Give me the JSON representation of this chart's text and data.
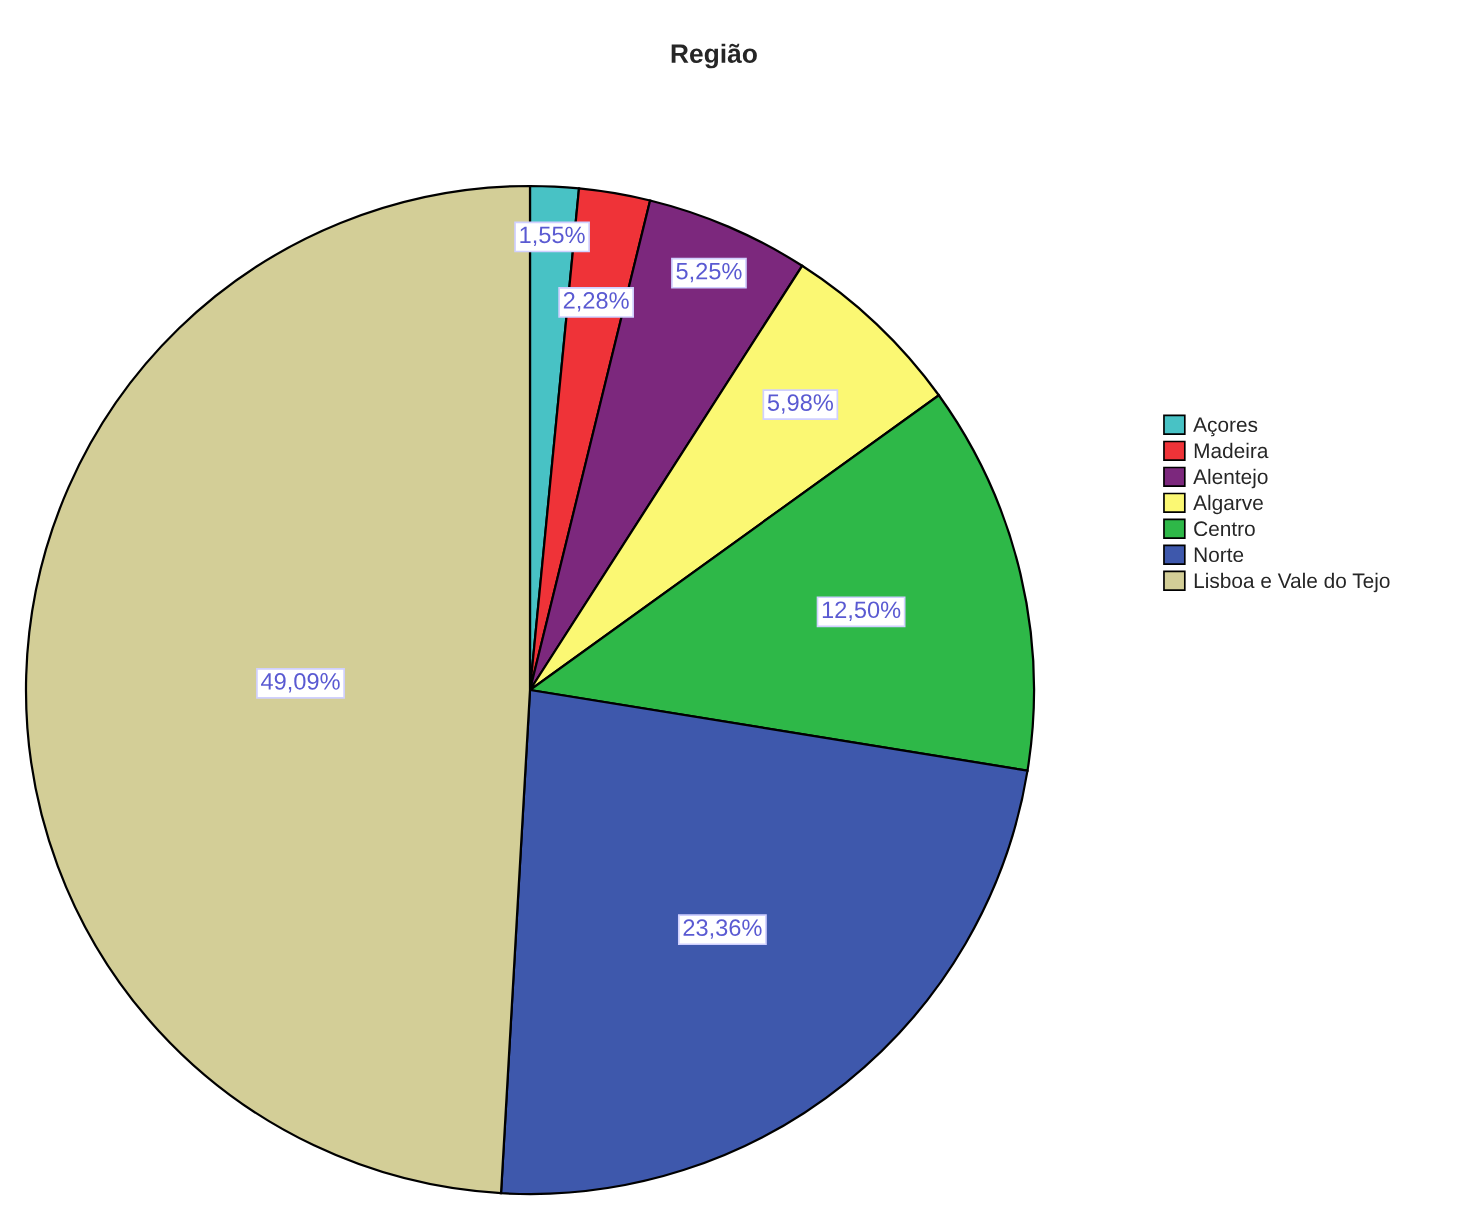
{
  "chart_data": {
    "type": "pie",
    "title": "Região",
    "categories": [
      "Açores",
      "Madeira",
      "Alentejo",
      "Algarve",
      "Centro",
      "Norte",
      "Lisboa e Vale do Tejo"
    ],
    "values": [
      1.55,
      2.28,
      5.25,
      5.98,
      12.5,
      23.36,
      49.09
    ],
    "colors": [
      "#48c2c5",
      "#ef3338",
      "#7c287d",
      "#fbf873",
      "#2eb848",
      "#3e58ac",
      "#d3ce97"
    ],
    "value_labels": [
      "1,55%",
      "2,28%",
      "5,25%",
      "5,98%",
      "12,50%",
      "23,36%",
      "49,09%"
    ],
    "legend": "right"
  }
}
